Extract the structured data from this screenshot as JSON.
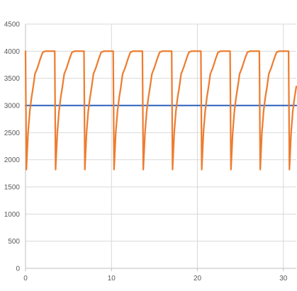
{
  "chart_data": {
    "type": "line",
    "title": "",
    "xlabel": "",
    "ylabel": "",
    "xlim": [
      0,
      31.5
    ],
    "ylim": [
      0,
      4500
    ],
    "x_ticks": [
      0,
      10,
      20,
      30
    ],
    "y_ticks": [
      0,
      500,
      1000,
      1500,
      2000,
      2500,
      3000,
      3500,
      4000,
      4500
    ],
    "x_tick_labels": [
      "0",
      "10",
      "20",
      "30"
    ],
    "y_tick_labels": [
      "0",
      "500",
      "1000",
      "1500",
      "2000",
      "2500",
      "3000",
      "3500",
      "4000",
      "4500"
    ],
    "grid": true,
    "legend": "none",
    "series": [
      {
        "color": "#4472C4",
        "points": [
          [
            0,
            3000
          ],
          [
            31.5,
            3000
          ]
        ]
      },
      {
        "color": "#ED7D31",
        "points": [
          [
            0.0,
            4000
          ],
          [
            0.1,
            1820
          ],
          [
            0.3,
            2500
          ],
          [
            0.5,
            2900
          ],
          [
            0.7,
            3150
          ],
          [
            0.9,
            3350
          ],
          [
            1.1,
            3580
          ],
          [
            1.4,
            3700
          ],
          [
            1.7,
            3850
          ],
          [
            2.0,
            3980
          ],
          [
            2.3,
            4000
          ],
          [
            3.3,
            4000
          ],
          [
            3.4,
            4000
          ],
          [
            3.5,
            1820
          ],
          [
            3.7,
            2500
          ],
          [
            3.9,
            2900
          ],
          [
            4.1,
            3150
          ],
          [
            4.3,
            3350
          ],
          [
            4.5,
            3580
          ],
          [
            4.8,
            3700
          ],
          [
            5.1,
            3850
          ],
          [
            5.4,
            3980
          ],
          [
            5.7,
            4000
          ],
          [
            6.7,
            4000
          ],
          [
            6.8,
            4000
          ],
          [
            6.9,
            1820
          ],
          [
            7.1,
            2500
          ],
          [
            7.3,
            2900
          ],
          [
            7.5,
            3150
          ],
          [
            7.7,
            3350
          ],
          [
            7.9,
            3580
          ],
          [
            8.2,
            3700
          ],
          [
            8.5,
            3850
          ],
          [
            8.8,
            3980
          ],
          [
            9.1,
            4000
          ],
          [
            10.1,
            4000
          ],
          [
            10.2,
            4000
          ],
          [
            10.3,
            1820
          ],
          [
            10.5,
            2500
          ],
          [
            10.7,
            2900
          ],
          [
            10.9,
            3150
          ],
          [
            11.1,
            3350
          ],
          [
            11.3,
            3580
          ],
          [
            11.6,
            3700
          ],
          [
            11.9,
            3850
          ],
          [
            12.2,
            3980
          ],
          [
            12.5,
            4000
          ],
          [
            13.5,
            4000
          ],
          [
            13.6,
            4000
          ],
          [
            13.7,
            1820
          ],
          [
            13.9,
            2500
          ],
          [
            14.1,
            2900
          ],
          [
            14.3,
            3150
          ],
          [
            14.5,
            3350
          ],
          [
            14.7,
            3580
          ],
          [
            15.0,
            3700
          ],
          [
            15.3,
            3850
          ],
          [
            15.6,
            3980
          ],
          [
            15.9,
            4000
          ],
          [
            16.9,
            4000
          ],
          [
            17.0,
            4000
          ],
          [
            17.1,
            1820
          ],
          [
            17.3,
            2500
          ],
          [
            17.5,
            2900
          ],
          [
            17.7,
            3150
          ],
          [
            17.9,
            3350
          ],
          [
            18.1,
            3580
          ],
          [
            18.4,
            3700
          ],
          [
            18.7,
            3850
          ],
          [
            19.0,
            3980
          ],
          [
            19.3,
            4000
          ],
          [
            20.3,
            4000
          ],
          [
            20.4,
            4000
          ],
          [
            20.5,
            1820
          ],
          [
            20.7,
            2500
          ],
          [
            20.9,
            2900
          ],
          [
            21.1,
            3150
          ],
          [
            21.3,
            3350
          ],
          [
            21.5,
            3580
          ],
          [
            21.8,
            3700
          ],
          [
            22.1,
            3850
          ],
          [
            22.4,
            3980
          ],
          [
            22.7,
            4000
          ],
          [
            23.7,
            4000
          ],
          [
            23.8,
            4000
          ],
          [
            23.9,
            1820
          ],
          [
            24.1,
            2500
          ],
          [
            24.3,
            2900
          ],
          [
            24.5,
            3150
          ],
          [
            24.7,
            3350
          ],
          [
            24.9,
            3580
          ],
          [
            25.2,
            3700
          ],
          [
            25.5,
            3850
          ],
          [
            25.8,
            3980
          ],
          [
            26.1,
            4000
          ],
          [
            27.1,
            4000
          ],
          [
            27.2,
            4000
          ],
          [
            27.3,
            1820
          ],
          [
            27.5,
            2500
          ],
          [
            27.7,
            2900
          ],
          [
            27.9,
            3150
          ],
          [
            28.1,
            3350
          ],
          [
            28.3,
            3580
          ],
          [
            28.6,
            3700
          ],
          [
            28.9,
            3850
          ],
          [
            29.2,
            3980
          ],
          [
            29.5,
            4000
          ],
          [
            30.5,
            4000
          ],
          [
            30.6,
            4000
          ],
          [
            30.7,
            1820
          ],
          [
            30.9,
            2500
          ],
          [
            31.1,
            2900
          ],
          [
            31.3,
            3150
          ],
          [
            31.5,
            3350
          ]
        ]
      }
    ]
  }
}
